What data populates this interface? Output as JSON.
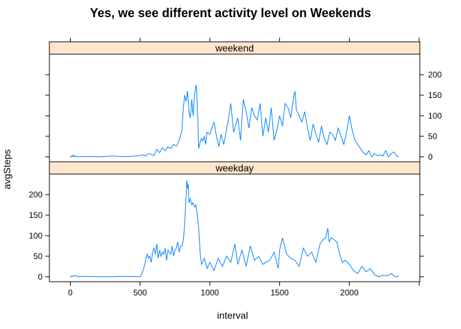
{
  "chart_data": {
    "type": "line",
    "title": "Yes, we see different activity level on Weekends",
    "xlabel": "interval",
    "ylabel": "avgSteps",
    "xlim": [
      -150,
      2505
    ],
    "ylim": [
      -12,
      250
    ],
    "x_ticks": [
      0,
      500,
      1000,
      1500,
      2000
    ],
    "y_ticks": [
      0,
      50,
      100,
      150,
      200
    ],
    "grid": false,
    "legend": "none",
    "line_color": "#0080ff",
    "strip_color": "#ffe5cc",
    "series": [
      {
        "name": "weekend",
        "x": [
          0,
          5,
          10,
          15,
          20,
          25,
          30,
          35,
          40,
          45,
          50,
          55,
          60,
          100,
          200,
          300,
          400,
          500,
          520,
          540,
          560,
          580,
          600,
          610,
          620,
          640,
          660,
          680,
          700,
          720,
          740,
          760,
          780,
          800,
          810,
          820,
          830,
          840,
          850,
          860,
          870,
          880,
          890,
          900,
          905,
          910,
          915,
          920,
          930,
          940,
          950,
          960,
          970,
          980,
          1000,
          1030,
          1050,
          1065,
          1080,
          1100,
          1130,
          1150,
          1170,
          1200,
          1220,
          1240,
          1260,
          1280,
          1300,
          1320,
          1340,
          1360,
          1380,
          1400,
          1420,
          1440,
          1460,
          1480,
          1500,
          1520,
          1540,
          1560,
          1580,
          1600,
          1610,
          1620,
          1640,
          1660,
          1680,
          1700,
          1720,
          1740,
          1760,
          1780,
          1800,
          1820,
          1840,
          1860,
          1880,
          1900,
          1920,
          1940,
          1960,
          1980,
          2000,
          2020,
          2040,
          2060,
          2080,
          2100,
          2120,
          2140,
          2160,
          2180,
          2200,
          2220,
          2240,
          2260,
          2280,
          2300,
          2320,
          2340,
          2355
        ],
        "y": [
          0,
          2,
          0,
          3,
          1,
          4,
          0,
          2,
          1,
          0,
          1,
          0,
          0,
          1,
          0,
          2,
          0,
          3,
          5,
          2,
          8,
          6,
          3,
          12,
          18,
          10,
          22,
          15,
          25,
          20,
          30,
          26,
          40,
          65,
          120,
          150,
          135,
          160,
          110,
          95,
          140,
          100,
          150,
          175,
          165,
          120,
          80,
          20,
          35,
          45,
          38,
          50,
          30,
          60,
          55,
          85,
          45,
          25,
          55,
          30,
          85,
          130,
          60,
          95,
          40,
          140,
          110,
          70,
          120,
          100,
          90,
          130,
          50,
          95,
          60,
          120,
          40,
          65,
          100,
          75,
          130,
          120,
          95,
          145,
          160,
          115,
          100,
          85,
          110,
          70,
          40,
          80,
          55,
          35,
          75,
          45,
          30,
          60,
          55,
          40,
          70,
          50,
          30,
          60,
          100,
          65,
          40,
          30,
          20,
          10,
          5,
          15,
          0,
          8,
          3,
          5,
          2,
          15,
          0,
          8,
          12,
          2,
          0
        ]
      },
      {
        "name": "weekday",
        "x": [
          0,
          5,
          10,
          20,
          30,
          40,
          50,
          55,
          60,
          100,
          200,
          300,
          400,
          500,
          510,
          520,
          530,
          540,
          550,
          560,
          570,
          580,
          590,
          600,
          610,
          620,
          630,
          640,
          650,
          660,
          670,
          680,
          690,
          700,
          710,
          720,
          730,
          740,
          750,
          760,
          770,
          780,
          790,
          800,
          810,
          820,
          830,
          835,
          840,
          845,
          850,
          860,
          870,
          880,
          890,
          900,
          910,
          920,
          930,
          940,
          960,
          980,
          1000,
          1030,
          1060,
          1090,
          1120,
          1150,
          1180,
          1200,
          1230,
          1260,
          1290,
          1320,
          1350,
          1380,
          1400,
          1430,
          1460,
          1490,
          1500,
          1520,
          1550,
          1580,
          1610,
          1640,
          1670,
          1700,
          1730,
          1760,
          1790,
          1810,
          1830,
          1845,
          1855,
          1870,
          1890,
          1910,
          1930,
          1950,
          1970,
          2000,
          2030,
          2060,
          2090,
          2120,
          2150,
          2180,
          2210,
          2240,
          2270,
          2300,
          2330,
          2355
        ],
        "y": [
          2,
          0,
          2,
          1,
          3,
          2,
          1,
          0,
          0,
          1,
          0,
          0,
          1,
          0,
          5,
          15,
          25,
          40,
          55,
          45,
          50,
          35,
          60,
          70,
          55,
          80,
          45,
          65,
          50,
          60,
          55,
          70,
          40,
          65,
          60,
          55,
          75,
          50,
          65,
          70,
          85,
          60,
          75,
          75,
          90,
          130,
          200,
          235,
          215,
          225,
          180,
          190,
          175,
          180,
          170,
          175,
          150,
          120,
          60,
          30,
          45,
          20,
          35,
          15,
          45,
          25,
          50,
          35,
          80,
          30,
          65,
          25,
          75,
          40,
          50,
          30,
          35,
          40,
          60,
          20,
          65,
          95,
          55,
          45,
          40,
          25,
          70,
          50,
          60,
          35,
          80,
          90,
          95,
          118,
          85,
          95,
          90,
          85,
          55,
          35,
          40,
          30,
          15,
          8,
          25,
          12,
          20,
          5,
          0,
          4,
          2,
          8,
          0,
          2
        ]
      }
    ]
  }
}
